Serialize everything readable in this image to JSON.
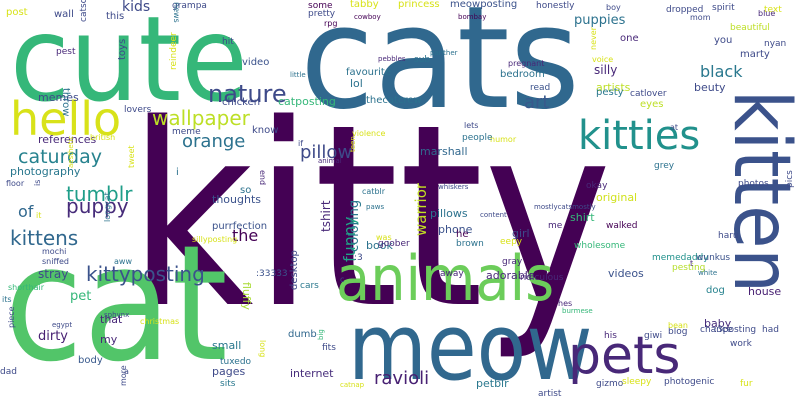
{
  "words": [
    {
      "text": "kitty",
      "color": "#440154"
    },
    {
      "text": "cats",
      "color": "#30688e"
    },
    {
      "text": "cute",
      "color": "#35b779"
    },
    {
      "text": "cat",
      "color": "#52c569"
    },
    {
      "text": "kitten",
      "color": "#3b528b"
    },
    {
      "text": "meow",
      "color": "#31688e"
    },
    {
      "text": "animals",
      "color": "#6ccd5a"
    },
    {
      "text": "pets",
      "color": "#482878"
    },
    {
      "text": "hello",
      "color": "#d8e219"
    },
    {
      "text": "kitties",
      "color": "#21918c"
    },
    {
      "text": "nature",
      "color": "#3e4a89"
    },
    {
      "text": "wallpaper",
      "color": "#bddf26"
    },
    {
      "text": "caturday",
      "color": "#26828e"
    },
    {
      "text": "kittyposting",
      "color": "#3b528b"
    },
    {
      "text": "tumblr",
      "color": "#1f9e89"
    },
    {
      "text": "kittens",
      "color": "#31688e"
    },
    {
      "text": "puppy",
      "color": "#472c7a"
    },
    {
      "text": "orange",
      "color": "#2c728e"
    },
    {
      "text": "black",
      "color": "#2a788e"
    },
    {
      "text": "art",
      "color": "#38598c"
    },
    {
      "text": "pillow",
      "color": "#3e4a89"
    },
    {
      "text": "the",
      "color": "#440154"
    },
    {
      "text": "ravioli",
      "color": "#482173"
    },
    {
      "text": "of",
      "color": "#31688e"
    },
    {
      "text": "kids",
      "color": "#3e4a89"
    },
    {
      "text": "puppies",
      "color": "#2c728e"
    },
    {
      "text": "funny",
      "color": "#20a486"
    },
    {
      "text": "warrior",
      "color": "#c2df23"
    },
    {
      "text": "coloring",
      "color": "#2a788e"
    },
    {
      "text": "tshirt",
      "color": "#482878"
    },
    {
      "text": "pet",
      "color": "#35b779"
    },
    {
      "text": "stray",
      "color": "#3e4a89"
    },
    {
      "text": "dirty",
      "color": "#482173"
    },
    {
      "text": "small",
      "color": "#2a788e"
    },
    {
      "text": "dumb",
      "color": "#31688e"
    },
    {
      "text": "internet",
      "color": "#472d7b"
    },
    {
      "text": "petblr",
      "color": "#2a788e"
    },
    {
      "text": "pages",
      "color": "#3e4a89"
    },
    {
      "text": "fluffy",
      "color": "#a8db34"
    },
    {
      "text": "adorable",
      "color": "#482878"
    },
    {
      "text": "videos",
      "color": "#3b528b"
    },
    {
      "text": "baby",
      "color": "#472d7b"
    },
    {
      "text": "house",
      "color": "#482173"
    },
    {
      "text": "dog",
      "color": "#26828e"
    },
    {
      "text": "pillows",
      "color": "#2c728e"
    },
    {
      "text": "phone",
      "color": "#3b528b"
    },
    {
      "text": "shirt",
      "color": "#35b779"
    },
    {
      "text": "girl",
      "color": "#3e4a89"
    },
    {
      "text": "original",
      "color": "#d0e11c"
    },
    {
      "text": "book",
      "color": "#2c728e"
    },
    {
      "text": "marshall",
      "color": "#31688e"
    },
    {
      "text": "thoughts",
      "color": "#3b528b"
    },
    {
      "text": "purrfection",
      "color": "#3b528b"
    },
    {
      "text": "references",
      "color": "#482878"
    },
    {
      "text": "photography",
      "color": "#2a788e"
    },
    {
      "text": "memes",
      "color": "#3e4a89"
    },
    {
      "text": "video",
      "color": "#3b528b"
    },
    {
      "text": "lol",
      "color": "#2c728e"
    },
    {
      "text": "thecatcrew",
      "color": "#2c728e"
    },
    {
      "text": "favourite",
      "color": "#2c728e"
    },
    {
      "text": "catposting",
      "color": "#35b779"
    },
    {
      "text": "chicken",
      "color": "#3e4a89"
    },
    {
      "text": "know",
      "color": "#3e4a89"
    },
    {
      "text": "so",
      "color": "#2c728e"
    },
    {
      "text": "i",
      "color": "#2c728e"
    },
    {
      "text": "that",
      "color": "#482878"
    },
    {
      "text": "my",
      "color": "#482878"
    },
    {
      "text": "body",
      "color": "#38598c"
    },
    {
      "text": "tuxedo",
      "color": "#2c728e"
    },
    {
      "text": "sits",
      "color": "#2a788e"
    },
    {
      "text": "desktop",
      "color": "#3e4a89"
    },
    {
      "text": "fits",
      "color": "#3e4a89"
    },
    {
      "text": "cars",
      "color": "#2a788e"
    },
    {
      "text": ":33333",
      "color": "#3b528b"
    },
    {
      "text": "goober",
      "color": "#482878"
    },
    {
      "text": "away",
      "color": "#482878"
    },
    {
      "text": "ridiculous",
      "color": "#482878"
    },
    {
      "text": "gray",
      "color": "#482878"
    },
    {
      "text": "brown",
      "color": "#2c728e"
    },
    {
      "text": "eepy",
      "color": "#d8e219"
    },
    {
      "text": "he",
      "color": "#440154"
    },
    {
      "text": "me",
      "color": "#482878"
    },
    {
      "text": "walked",
      "color": "#440154"
    },
    {
      "text": "wholesome",
      "color": "#35b779"
    },
    {
      "text": "memedaddy",
      "color": "#21918c"
    },
    {
      "text": "pesting",
      "color": "#b5de2b"
    },
    {
      "text": "wunkus",
      "color": "#3b528b"
    },
    {
      "text": "haru",
      "color": "#3e4a89"
    },
    {
      "text": "photos",
      "color": "#3e4a89"
    },
    {
      "text": "pics",
      "color": "#3e4a89"
    },
    {
      "text": "silly",
      "color": "#482878"
    },
    {
      "text": "beuty",
      "color": "#3e4a89"
    },
    {
      "text": "artists",
      "color": "#bddf26"
    },
    {
      "text": "pesty",
      "color": "#2a788e"
    },
    {
      "text": "eyes",
      "color": "#bddf26"
    },
    {
      "text": "catlover",
      "color": "#3e4a89"
    },
    {
      "text": "bedroom",
      "color": "#2c728e"
    },
    {
      "text": "read",
      "color": "#3b528b"
    },
    {
      "text": "one",
      "color": "#482878"
    },
    {
      "text": "you",
      "color": "#3e4a89"
    },
    {
      "text": "marty",
      "color": "#3e4a89"
    },
    {
      "text": "beautiful",
      "color": "#bddf26"
    },
    {
      "text": "nyan",
      "color": "#3e4a89"
    },
    {
      "text": "text",
      "color": "#d8e219"
    },
    {
      "text": "spirit",
      "color": "#3e4a89"
    },
    {
      "text": "blue",
      "color": "#482878"
    },
    {
      "text": "dropped",
      "color": "#3e4a89"
    },
    {
      "text": "mom",
      "color": "#3e4a89"
    },
    {
      "text": "boy",
      "color": "#3e4a89"
    },
    {
      "text": "honestly",
      "color": "#3e4a89"
    },
    {
      "text": "meowposting",
      "color": "#3b528b"
    },
    {
      "text": "princess",
      "color": "#d8e219"
    },
    {
      "text": "tabby",
      "color": "#d8e219"
    },
    {
      "text": "pretty",
      "color": "#3e4a89"
    },
    {
      "text": "some",
      "color": "#440154"
    },
    {
      "text": "rpg",
      "color": "#440154"
    },
    {
      "text": "cowboy",
      "color": "#440154"
    },
    {
      "text": "bombay",
      "color": "#440154"
    },
    {
      "text": "grampa",
      "color": "#3e4a89"
    },
    {
      "text": "news",
      "color": "#2c728e"
    },
    {
      "text": "this",
      "color": "#3e4a89"
    },
    {
      "text": "wall",
      "color": "#3e4a89"
    },
    {
      "text": "post",
      "color": "#d8e219"
    },
    {
      "text": "toys",
      "color": "#3e4a89"
    },
    {
      "text": "pest",
      "color": "#482878"
    },
    {
      "text": "catsoftheworld",
      "color": "#3e4a89"
    },
    {
      "text": "hit",
      "color": "#3e4a89"
    },
    {
      "text": "reindeer",
      "color": "#d8e219"
    },
    {
      "text": "throw",
      "color": "#2c728e"
    },
    {
      "text": "lovers",
      "color": "#3e4a89"
    },
    {
      "text": "meme",
      "color": "#3e4a89"
    },
    {
      "text": "british",
      "color": "#d8e219"
    },
    {
      "text": "if",
      "color": "#3e4a89"
    },
    {
      "text": "violence",
      "color": "#d8e219"
    },
    {
      "text": "teen",
      "color": "#d8e219"
    },
    {
      "text": "animal",
      "color": "#482878"
    },
    {
      "text": "catblr",
      "color": "#2c728e"
    },
    {
      "text": "paws",
      "color": "#2c728e"
    },
    {
      "text": "end",
      "color": "#482878"
    },
    {
      "text": "tweet",
      "color": "#d8e219"
    },
    {
      "text": "aesthetic",
      "color": "#d8e219"
    },
    {
      "text": "floor",
      "color": "#3e4a89"
    },
    {
      "text": "is",
      "color": "#3e4a89"
    },
    {
      "text": "it",
      "color": "#d8e219"
    },
    {
      "text": "sillyposting",
      "color": "#d8e219"
    },
    {
      "text": "longcat",
      "color": "#2c728e"
    },
    {
      "text": "mochi",
      "color": "#3e4a89"
    },
    {
      "text": "sniffed",
      "color": "#3e4a89"
    },
    {
      "text": "aww",
      "color": "#2c728e"
    },
    {
      "text": "shorthair",
      "color": "#35b779"
    },
    {
      "text": "its",
      "color": "#2c728e"
    },
    {
      "text": "egypt",
      "color": "#3e4a89"
    },
    {
      "text": "piece",
      "color": "#3e4a89"
    },
    {
      "text": "dad",
      "color": "#3e4a89"
    },
    {
      "text": "more",
      "color": "#3e4a89"
    },
    {
      "text": "a",
      "color": "#3e4a89"
    },
    {
      "text": "sphynx",
      "color": "#3e4a89"
    },
    {
      "text": "christmas",
      "color": "#d8e219"
    },
    {
      "text": "long",
      "color": "#d8e219"
    },
    {
      "text": "big",
      "color": "#35b779"
    },
    {
      "text": "catnap",
      "color": "#d8e219"
    },
    {
      "text": "c",
      "color": "#3e4a89"
    },
    {
      "text": ":3",
      "color": "#3e4a89"
    },
    {
      "text": "whiskers",
      "color": "#3e4a89"
    },
    {
      "text": "content",
      "color": "#3e4a89"
    },
    {
      "text": "mostlycatsmostly",
      "color": "#3e4a89"
    },
    {
      "text": "was",
      "color": "#d8e219"
    },
    {
      "text": "okay",
      "color": "#482878"
    },
    {
      "text": "grey",
      "color": "#2c728e"
    },
    {
      "text": "humor",
      "color": "#d8e219"
    },
    {
      "text": "people",
      "color": "#2c728e"
    },
    {
      "text": "lets",
      "color": "#3e4a89"
    },
    {
      "text": "at",
      "color": "#3e4a89"
    },
    {
      "text": "voice",
      "color": "#d8e219"
    },
    {
      "text": "never",
      "color": "#d8e219"
    },
    {
      "text": "pregnant",
      "color": "#482878"
    },
    {
      "text": "sub",
      "color": "#2c728e"
    },
    {
      "text": "pebbles",
      "color": "#482878"
    },
    {
      "text": "panther",
      "color": "#2c728e"
    },
    {
      "text": "little",
      "color": "#2c728e"
    },
    {
      "text": "t",
      "color": "#482878"
    },
    {
      "text": "white",
      "color": "#2c728e"
    },
    {
      "text": ":3posting",
      "color": "#3e4a89"
    },
    {
      "text": "hes",
      "color": "#482878"
    },
    {
      "text": "burmese",
      "color": "#35b779"
    },
    {
      "text": "his",
      "color": "#482878"
    },
    {
      "text": "giwi",
      "color": "#3e4a89"
    },
    {
      "text": "blog",
      "color": "#3e4a89"
    },
    {
      "text": "bean",
      "color": "#d8e219"
    },
    {
      "text": "chance",
      "color": "#3e4a89"
    },
    {
      "text": "had",
      "color": "#3e4a89"
    },
    {
      "text": "work",
      "color": "#3e4a89"
    },
    {
      "text": "artist",
      "color": "#3e4a89"
    },
    {
      "text": "gizmo",
      "color": "#3e4a89"
    },
    {
      "text": "sleepy",
      "color": "#d8e219"
    },
    {
      "text": "photogenic",
      "color": "#3e4a89"
    },
    {
      "text": "fur",
      "color": "#d8e219"
    }
  ]
}
